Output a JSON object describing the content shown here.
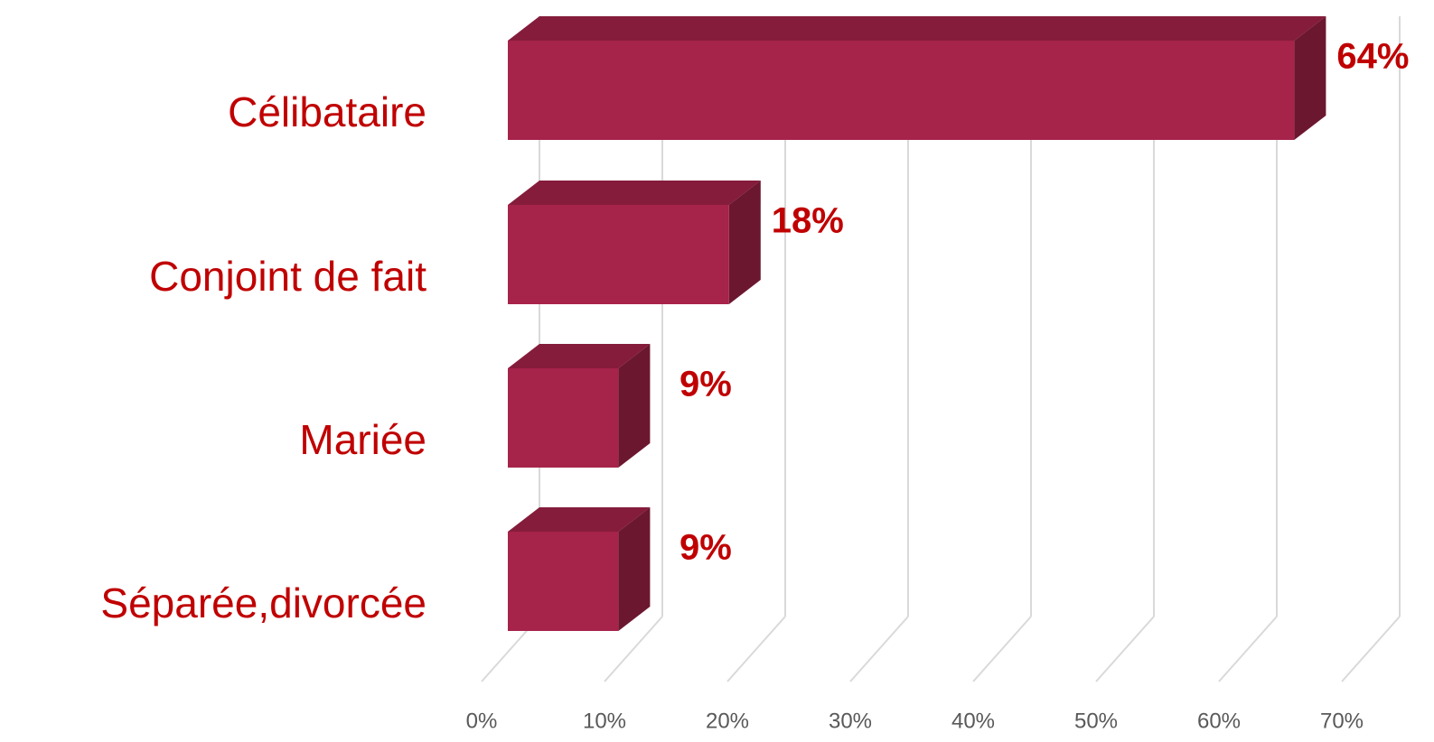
{
  "chart_data": {
    "type": "bar3d",
    "orientation": "horizontal",
    "categories": [
      "Célibataire",
      "Conjoint de fait",
      "Mariée",
      "Séparée,divorcée"
    ],
    "values": [
      64,
      18,
      9,
      9
    ],
    "value_labels": [
      "64%",
      "18%",
      "9%",
      "9%"
    ],
    "color": "#a6234a",
    "xlim": [
      0,
      70
    ],
    "xticks": [
      {
        "value": 0,
        "label": "0%"
      },
      {
        "value": 10,
        "label": "10%"
      },
      {
        "value": 20,
        "label": "20%"
      },
      {
        "value": 30,
        "label": "30%"
      },
      {
        "value": 40,
        "label": "40%"
      },
      {
        "value": 50,
        "label": "50%"
      },
      {
        "value": 60,
        "label": "60%"
      },
      {
        "value": 70,
        "label": "70%"
      }
    ],
    "grid": true
  }
}
